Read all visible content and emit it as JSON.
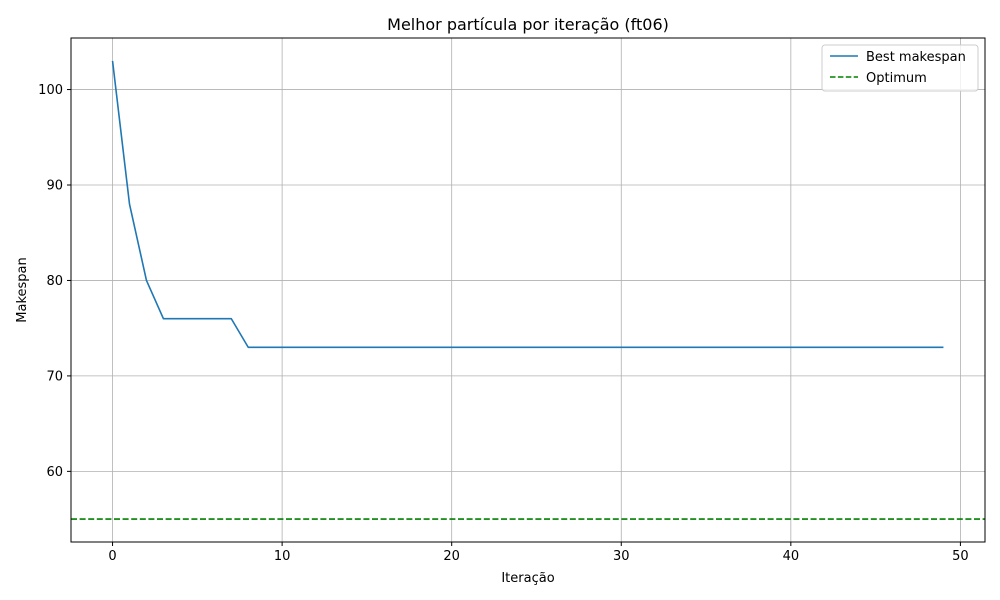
{
  "chart_data": {
    "type": "line",
    "title": "Melhor partícula por iteração (ft06)",
    "xlabel": "Iteração",
    "ylabel": "Makespan",
    "xlim": [
      -2.45,
      51.45
    ],
    "ylim": [
      52.6,
      105.4
    ],
    "xticks": [
      0,
      10,
      20,
      30,
      40,
      50
    ],
    "yticks": [
      60,
      70,
      80,
      90,
      100
    ],
    "grid": true,
    "legend_position": "top-right",
    "series": [
      {
        "name": "Best makespan",
        "style": "solid",
        "color": "#1f77b4",
        "x": [
          0,
          1,
          2,
          3,
          4,
          5,
          6,
          7,
          8,
          9,
          10,
          11,
          12,
          13,
          14,
          15,
          16,
          17,
          18,
          19,
          20,
          21,
          22,
          23,
          24,
          25,
          26,
          27,
          28,
          29,
          30,
          31,
          32,
          33,
          34,
          35,
          36,
          37,
          38,
          39,
          40,
          41,
          42,
          43,
          44,
          45,
          46,
          47,
          48,
          49
        ],
        "y": [
          103,
          88,
          80,
          76,
          76,
          76,
          76,
          76,
          73,
          73,
          73,
          73,
          73,
          73,
          73,
          73,
          73,
          73,
          73,
          73,
          73,
          73,
          73,
          73,
          73,
          73,
          73,
          73,
          73,
          73,
          73,
          73,
          73,
          73,
          73,
          73,
          73,
          73,
          73,
          73,
          73,
          73,
          73,
          73,
          73,
          73,
          73,
          73,
          73,
          73
        ]
      }
    ],
    "hlines": [
      {
        "name": "Optimum",
        "y": 55,
        "style": "dashed",
        "color": "#008000"
      }
    ]
  }
}
